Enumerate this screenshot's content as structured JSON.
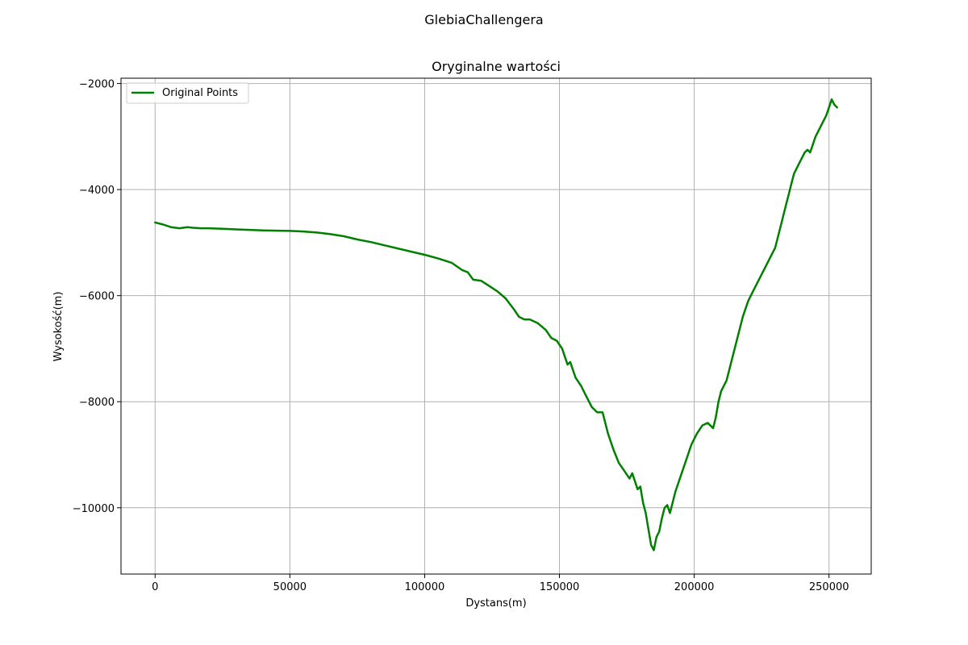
{
  "figure": {
    "suptitle": "GlebiaChallengera"
  },
  "chart_data": {
    "type": "line",
    "title": "Oryginalne wartości",
    "xlabel": "Dystans(m)",
    "ylabel": "Wysokość(m)",
    "xlim": [
      -12650,
      265650
    ],
    "ylim": [
      -11250,
      -1900
    ],
    "xticks": [
      0,
      50000,
      100000,
      150000,
      200000,
      250000
    ],
    "xtick_labels": [
      "0",
      "50000",
      "100000",
      "150000",
      "200000",
      "250000"
    ],
    "yticks": [
      -2000,
      -4000,
      -6000,
      -8000,
      -10000
    ],
    "ytick_labels": [
      "−2000",
      "−4000",
      "−6000",
      "−8000",
      "−10000"
    ],
    "grid": true,
    "legend_position": "upper-left",
    "series": [
      {
        "name": "Original Points",
        "color": "#008000",
        "x": [
          0,
          3000,
          6000,
          9000,
          12000,
          14000,
          17000,
          20000,
          25000,
          30000,
          35000,
          40000,
          45000,
          50000,
          55000,
          60000,
          65000,
          70000,
          75000,
          80000,
          85000,
          90000,
          95000,
          100000,
          105000,
          110000,
          112000,
          114000,
          116000,
          118000,
          121000,
          124000,
          127000,
          130000,
          133000,
          135000,
          137000,
          139000,
          142000,
          145000,
          147000,
          149000,
          151000,
          152000,
          153000,
          154000,
          155000,
          156000,
          158000,
          160000,
          162000,
          164000,
          166000,
          168000,
          170000,
          172000,
          174000,
          176000,
          177000,
          178000,
          179000,
          180000,
          181000,
          182000,
          183000,
          184000,
          185000,
          186000,
          187000,
          188000,
          189000,
          190000,
          191000,
          192000,
          193000,
          195000,
          197000,
          199000,
          201000,
          203000,
          205000,
          206000,
          207000,
          208000,
          209000,
          210000,
          212000,
          214000,
          216000,
          218000,
          220000,
          222000,
          224000,
          226000,
          228000,
          230000,
          232000,
          233000,
          234000,
          235000,
          236000,
          237000,
          239000,
          241000,
          242000,
          243000,
          244000,
          245000,
          247000,
          249000,
          250000,
          251000,
          252000,
          253000
        ],
        "y": [
          -4620,
          -4660,
          -4710,
          -4730,
          -4710,
          -4720,
          -4730,
          -4730,
          -4740,
          -4750,
          -4760,
          -4770,
          -4775,
          -4780,
          -4790,
          -4810,
          -4840,
          -4880,
          -4940,
          -4990,
          -5050,
          -5110,
          -5170,
          -5230,
          -5300,
          -5380,
          -5450,
          -5520,
          -5560,
          -5700,
          -5720,
          -5820,
          -5920,
          -6050,
          -6250,
          -6400,
          -6450,
          -6450,
          -6520,
          -6650,
          -6800,
          -6850,
          -7000,
          -7150,
          -7300,
          -7250,
          -7400,
          -7550,
          -7700,
          -7900,
          -8100,
          -8200,
          -8200,
          -8600,
          -8900,
          -9150,
          -9300,
          -9450,
          -9350,
          -9500,
          -9650,
          -9600,
          -9900,
          -10100,
          -10400,
          -10700,
          -10800,
          -10550,
          -10450,
          -10200,
          -10000,
          -9950,
          -10100,
          -9900,
          -9700,
          -9400,
          -9100,
          -8800,
          -8600,
          -8450,
          -8400,
          -8450,
          -8500,
          -8300,
          -8000,
          -7800,
          -7600,
          -7200,
          -6800,
          -6400,
          -6100,
          -5900,
          -5700,
          -5500,
          -5300,
          -5100,
          -4700,
          -4500,
          -4300,
          -4100,
          -3900,
          -3700,
          -3500,
          -3300,
          -3250,
          -3300,
          -3150,
          -3000,
          -2800,
          -2600,
          -2450,
          -2300,
          -2400,
          -2450
        ]
      }
    ]
  }
}
